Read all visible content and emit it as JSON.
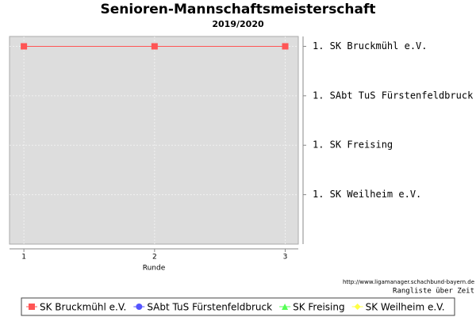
{
  "chart_data": {
    "type": "line",
    "title": "Senioren-Mannschaftsmeisterschaft",
    "subtitle": "2019/2020",
    "x_label": "Runde",
    "x": [
      1,
      2,
      3
    ],
    "xlim": [
      0.89,
      3.1
    ],
    "xticks": [
      1,
      2,
      3
    ],
    "ylim": [
      5,
      0.8
    ],
    "yticks": [
      {
        "value": 1,
        "label": "1. SK Bruckmühl e.V."
      },
      {
        "value": 2,
        "label": "1. SAbt TuS Fürstenfeldbruck"
      },
      {
        "value": 3,
        "label": "1. SK Freising"
      },
      {
        "value": 4,
        "label": "1. SK Weilheim e.V."
      }
    ],
    "grid": true,
    "legend": "bottom",
    "annotations": [
      "http://www.ligamanager.schachbund-bayern.de",
      "Rangliste über Zeit"
    ],
    "series": [
      {
        "name": "SK Bruckmühl e.V.",
        "color": "#ff5555",
        "marker": "square",
        "values": [
          1,
          1,
          1
        ]
      },
      {
        "name": "SAbt TuS Fürstenfeldbruck",
        "color": "#5555ff",
        "marker": "circle",
        "values": [
          null,
          null,
          null
        ]
      },
      {
        "name": "SK Freising",
        "color": "#55ff55",
        "marker": "triangle",
        "values": [
          null,
          null,
          null
        ]
      },
      {
        "name": "SK Weilheim e.V.",
        "color": "#ffff44",
        "marker": "diamond",
        "values": [
          null,
          null,
          null
        ]
      }
    ]
  }
}
